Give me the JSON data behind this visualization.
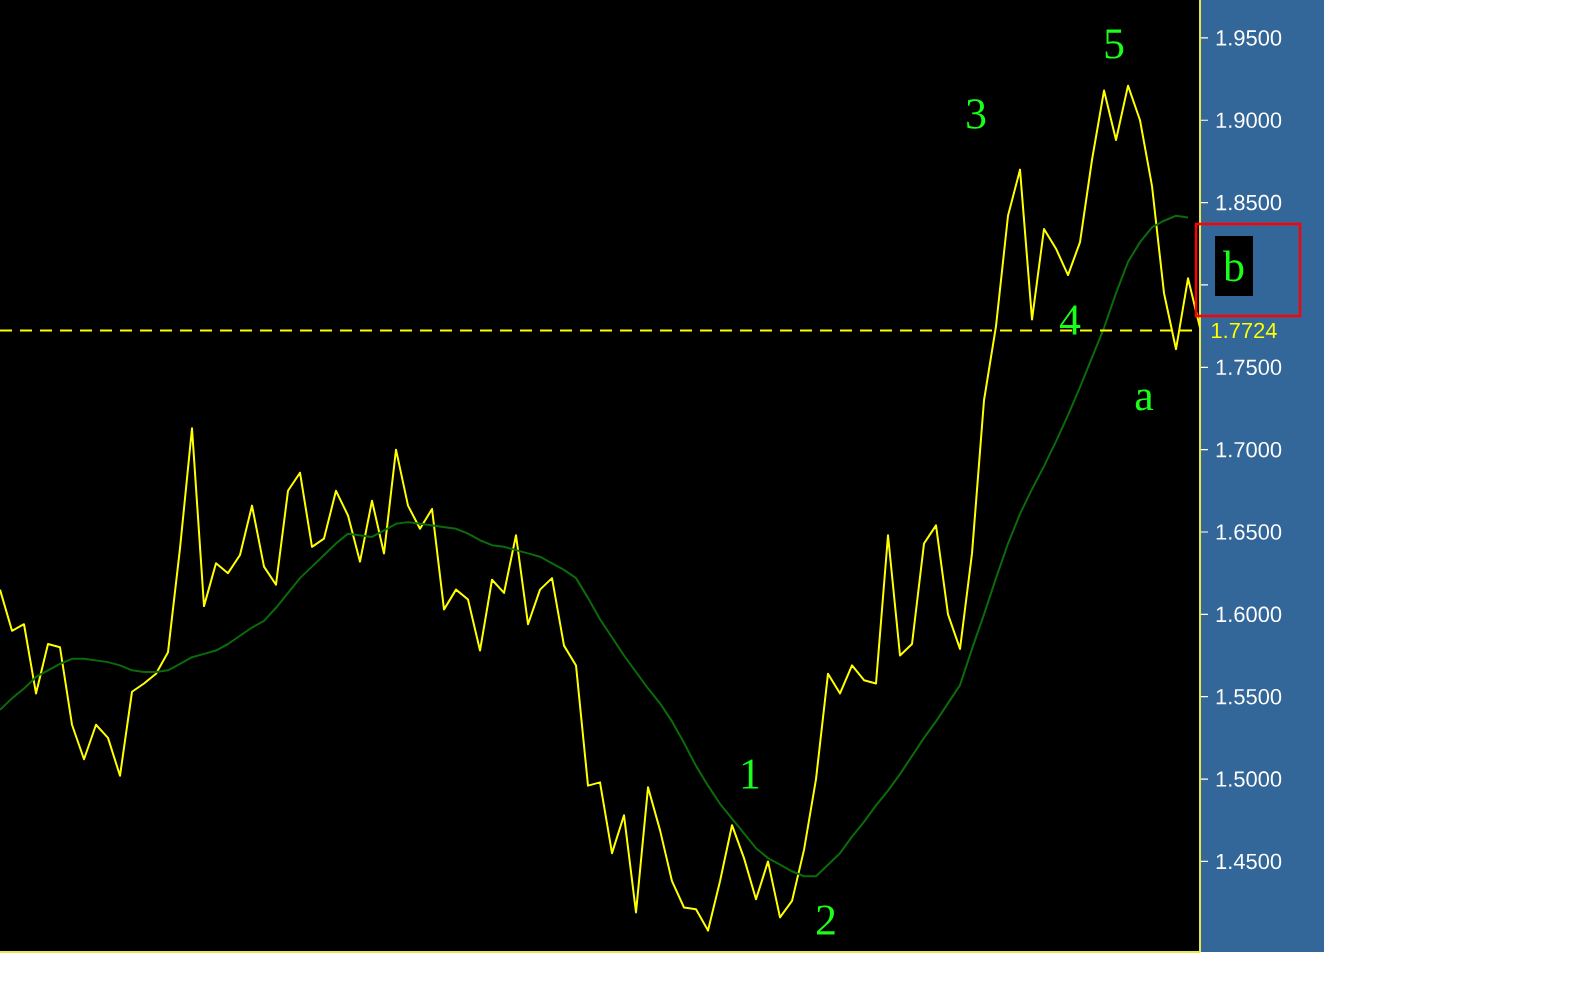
{
  "chart_data": {
    "type": "line",
    "categories": [
      null,
      null,
      null,
      null,
      null,
      null,
      null,
      null,
      null,
      null,
      null,
      null,
      null,
      null,
      null,
      null,
      null,
      null,
      null,
      null,
      null,
      null,
      null,
      null,
      null,
      null,
      null,
      null,
      null,
      null,
      null,
      null,
      null,
      null,
      null,
      null,
      null,
      null,
      null,
      null,
      null,
      null,
      null,
      null,
      null,
      null,
      null,
      null,
      null,
      null,
      null,
      null,
      null,
      null,
      null,
      null,
      null,
      null,
      null,
      null,
      null,
      null,
      null,
      null,
      null,
      null,
      null,
      null,
      null,
      null,
      null,
      null,
      null,
      null,
      null,
      null,
      null,
      null,
      null,
      null,
      null,
      null,
      null,
      null,
      null,
      null,
      null,
      null,
      null,
      null,
      null,
      null,
      null,
      null,
      null,
      null,
      null,
      null,
      null,
      null,
      null
    ],
    "series": [
      {
        "color": "#ffff00",
        "values": [
          1.615,
          1.59,
          1.594,
          1.552,
          1.582,
          1.58,
          1.533,
          1.512,
          1.533,
          1.525,
          1.502,
          1.553,
          1.558,
          1.564,
          1.577,
          1.64,
          1.713,
          1.605,
          1.631,
          1.625,
          1.636,
          1.666,
          1.629,
          1.618,
          1.675,
          1.686,
          1.641,
          1.646,
          1.675,
          1.66,
          1.632,
          1.669,
          1.637,
          1.7,
          1.666,
          1.652,
          1.664,
          1.603,
          1.615,
          1.609,
          1.578,
          1.621,
          1.613,
          1.648,
          1.594,
          1.615,
          1.622,
          1.581,
          1.569,
          1.496,
          1.498,
          1.455,
          1.478,
          1.419,
          1.495,
          1.469,
          1.438,
          1.422,
          1.421,
          1.408,
          1.438,
          1.472,
          1.452,
          1.427,
          1.45,
          1.416,
          1.426,
          1.457,
          1.5,
          1.564,
          1.552,
          1.569,
          1.56,
          1.558,
          1.648,
          1.575,
          1.582,
          1.643,
          1.654,
          1.6,
          1.579,
          1.637,
          1.73,
          1.775,
          1.842,
          1.87,
          1.779,
          1.834,
          1.822,
          1.806,
          1.826,
          1.876,
          1.918,
          1.888,
          1.921,
          1.9,
          1.86,
          1.795,
          1.761,
          1.804,
          1.774
        ]
      },
      {
        "color": "#0b6b0b",
        "values": [
          1.542,
          1.549,
          1.555,
          1.562,
          1.566,
          1.57,
          1.573,
          1.573,
          1.572,
          1.571,
          1.569,
          1.566,
          1.565,
          1.565,
          1.566,
          1.57,
          1.574,
          1.576,
          1.578,
          1.582,
          1.587,
          1.592,
          1.596,
          1.604,
          1.613,
          1.622,
          1.629,
          1.636,
          1.643,
          1.649,
          1.648,
          1.647,
          1.651,
          1.655,
          1.656,
          1.655,
          1.654,
          1.653,
          1.652,
          1.649,
          1.645,
          1.642,
          1.641,
          1.639,
          1.637,
          1.635,
          1.631,
          1.627,
          1.622,
          1.61,
          1.597,
          1.586,
          1.575,
          1.565,
          1.555,
          1.546,
          1.535,
          1.522,
          1.508,
          1.496,
          1.485,
          1.476,
          1.467,
          1.458,
          1.452,
          1.448,
          1.444,
          1.441,
          1.441,
          1.448,
          1.455,
          1.465,
          1.474,
          1.484,
          1.493,
          1.503,
          1.514,
          1.525,
          1.535,
          1.546,
          1.557,
          1.579,
          1.6,
          1.622,
          1.643,
          1.661,
          1.676,
          1.69,
          1.705,
          1.721,
          1.738,
          1.756,
          1.774,
          1.795,
          1.814,
          1.826,
          1.835,
          1.839,
          1.842,
          1.841,
          null
        ]
      }
    ],
    "ylim": [
      1.395,
      1.973
    ],
    "yticks": [
      {
        "value": 1.45,
        "label": "1.4500"
      },
      {
        "value": 1.5,
        "label": "1.5000"
      },
      {
        "value": 1.55,
        "label": "1.5500"
      },
      {
        "value": 1.6,
        "label": "1.6000"
      },
      {
        "value": 1.65,
        "label": "1.6500"
      },
      {
        "value": 1.7,
        "label": "1.7000"
      },
      {
        "value": 1.75,
        "label": "1.7500"
      },
      {
        "value": 1.8,
        "label": null
      },
      {
        "value": 1.85,
        "label": "1.8500"
      },
      {
        "value": 1.9,
        "label": "1.9000"
      },
      {
        "value": 1.95,
        "label": "1.9500"
      }
    ],
    "tick_labels": "y",
    "grid": false,
    "marker": "none",
    "line_style": "solid",
    "ref_lines": [
      {
        "axis": "y",
        "value": 1.7724,
        "label": "1.7724",
        "color": "#ffff00",
        "line_style": "dashed"
      }
    ],
    "annotations": [
      "1",
      "2",
      "3",
      "4",
      "5",
      "a",
      "b"
    ]
  }
}
